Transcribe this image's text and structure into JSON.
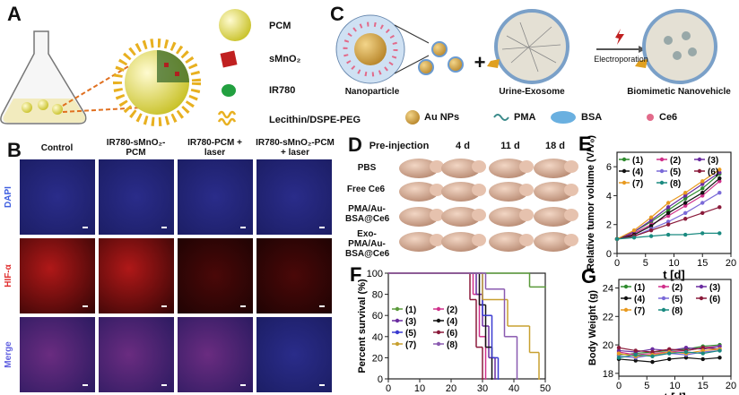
{
  "panel_a": {
    "label": "A",
    "legend": [
      "PCM",
      "sMnO₂",
      "IR780",
      "Lecithin/DSPE-PEG"
    ]
  },
  "panel_b": {
    "label": "B",
    "columns": [
      "Control",
      "IR780-sMnO₂-PCM",
      "IR780-PCM + laser",
      "IR780-sMnO₂-PCM + laser"
    ],
    "rows": [
      "DAPI",
      "HIF-α",
      "Merge"
    ]
  },
  "panel_c": {
    "label": "C",
    "items": [
      "Nanoparticle",
      "Urine-Exosome",
      "Biomimetic Nanovehicle"
    ],
    "plus": "+",
    "arrow_label": "Electroporation",
    "legend": [
      "Au NPs",
      "PMA",
      "BSA",
      "Ce6"
    ]
  },
  "panel_d": {
    "label": "D",
    "columns": [
      "Pre-injection",
      "4 d",
      "11 d",
      "18 d"
    ],
    "rows": [
      "PBS",
      "Free Ce6",
      "PMA/Au-BSA@Ce6",
      "Exo-PMA/Au-BSA@Ce6"
    ]
  },
  "chart_data": [
    {
      "type": "line",
      "panel": "E",
      "x_label": "t [d]",
      "y_label": "Relative tumor volume (V/V₀)",
      "annotation": "**",
      "x": [
        0,
        3,
        6,
        9,
        12,
        15,
        18
      ],
      "xlim": [
        0,
        20
      ],
      "xticks": [
        0,
        5,
        10,
        15,
        20
      ],
      "ylim": [
        0,
        7
      ],
      "yticks": [
        0,
        2,
        4,
        6
      ],
      "series": [
        {
          "name": "(1)",
          "color": "#2e8b2e",
          "values": [
            1,
            1.5,
            2.2,
            3,
            3.8,
            4.5,
            5.5
          ]
        },
        {
          "name": "(2)",
          "color": "#d0308a",
          "values": [
            1,
            1.4,
            2,
            2.6,
            3.3,
            4,
            5
          ]
        },
        {
          "name": "(3)",
          "color": "#6a2ca0",
          "values": [
            1,
            1.5,
            2.3,
            3.2,
            4,
            4.8,
            5.6
          ]
        },
        {
          "name": "(4)",
          "color": "#111111",
          "values": [
            1,
            1.3,
            1.9,
            2.8,
            3.5,
            4.2,
            5.2
          ]
        },
        {
          "name": "(5)",
          "color": "#7a6ad8",
          "values": [
            1,
            1.2,
            1.7,
            2.2,
            2.8,
            3.5,
            4.2
          ]
        },
        {
          "name": "(6)",
          "color": "#8a1a3a",
          "values": [
            1,
            1.2,
            1.6,
            2,
            2.4,
            2.8,
            3.2
          ]
        },
        {
          "name": "(7)",
          "color": "#e89a20",
          "values": [
            1,
            1.6,
            2.5,
            3.5,
            4.2,
            5,
            5.8
          ]
        },
        {
          "name": "(8)",
          "color": "#1a8a80",
          "values": [
            1,
            1.1,
            1.2,
            1.3,
            1.3,
            1.4,
            1.4
          ]
        }
      ]
    },
    {
      "type": "step",
      "panel": "F",
      "x_label": "t [d]",
      "y_label": "Percent survival (%)",
      "xlim": [
        0,
        50
      ],
      "xticks": [
        0,
        10,
        20,
        30,
        40,
        50
      ],
      "ylim": [
        0,
        100
      ],
      "yticks": [
        0,
        20,
        40,
        60,
        80,
        100
      ],
      "series": [
        {
          "name": "(1)",
          "color": "#5a9a3a",
          "x": [
            0,
            45,
            50
          ],
          "values": [
            100,
            87,
            87
          ]
        },
        {
          "name": "(2)",
          "color": "#d0308a",
          "x": [
            0,
            27,
            29,
            31
          ],
          "values": [
            100,
            80,
            40,
            0
          ]
        },
        {
          "name": "(3)",
          "color": "#6a2ca0",
          "x": [
            0,
            28,
            30,
            32,
            34
          ],
          "values": [
            100,
            80,
            50,
            20,
            0
          ]
        },
        {
          "name": "(4)",
          "color": "#111111",
          "x": [
            0,
            29,
            31,
            33
          ],
          "values": [
            100,
            70,
            30,
            0
          ]
        },
        {
          "name": "(5)",
          "color": "#3a3ad0",
          "x": [
            0,
            30,
            33,
            35
          ],
          "values": [
            100,
            60,
            20,
            0
          ]
        },
        {
          "name": "(6)",
          "color": "#8a1a3a",
          "x": [
            0,
            26,
            28,
            30
          ],
          "values": [
            100,
            75,
            30,
            0
          ]
        },
        {
          "name": "(7)",
          "color": "#c8a030",
          "x": [
            0,
            30,
            38,
            45,
            48
          ],
          "values": [
            100,
            75,
            50,
            25,
            0
          ]
        },
        {
          "name": "(8)",
          "color": "#8a5ab0",
          "x": [
            0,
            31,
            37,
            41
          ],
          "values": [
            100,
            85,
            40,
            0
          ]
        }
      ]
    },
    {
      "type": "line",
      "panel": "G",
      "x_label": "t [d]",
      "y_label": "Body Weight (g)",
      "x": [
        0,
        3,
        6,
        9,
        12,
        15,
        18
      ],
      "xlim": [
        0,
        20
      ],
      "xticks": [
        0,
        5,
        10,
        15,
        20
      ],
      "ylim": [
        17.8,
        24.6
      ],
      "yticks": [
        18,
        20,
        22,
        24
      ],
      "series": [
        {
          "name": "(1)",
          "color": "#2e8b2e",
          "values": [
            19.3,
            19.4,
            19.5,
            19.6,
            19.7,
            19.9,
            20
          ]
        },
        {
          "name": "(2)",
          "color": "#d0308a",
          "values": [
            19.5,
            19.3,
            19.4,
            19.5,
            19.6,
            19.8,
            19.9
          ]
        },
        {
          "name": "(3)",
          "color": "#6a2ca0",
          "values": [
            19.6,
            19.5,
            19.7,
            19.6,
            19.8,
            19.7,
            19.9
          ]
        },
        {
          "name": "(4)",
          "color": "#111111",
          "values": [
            19,
            18.9,
            18.8,
            19,
            19.1,
            19,
            19.1
          ]
        },
        {
          "name": "(5)",
          "color": "#7a6ad8",
          "values": [
            19.2,
            19.1,
            19.3,
            19.4,
            19.3,
            19.5,
            19.6
          ]
        },
        {
          "name": "(6)",
          "color": "#8a1a3a",
          "values": [
            19.8,
            19.6,
            19.5,
            19.7,
            19.6,
            19.8,
            19.7
          ]
        },
        {
          "name": "(7)",
          "color": "#e89a20",
          "values": [
            19.4,
            19.2,
            19.3,
            19.5,
            19.4,
            19.6,
            19.7
          ]
        },
        {
          "name": "(8)",
          "color": "#1a8a80",
          "values": [
            19.1,
            19.3,
            19.2,
            19.4,
            19.5,
            19.4,
            19.6
          ]
        }
      ]
    }
  ]
}
